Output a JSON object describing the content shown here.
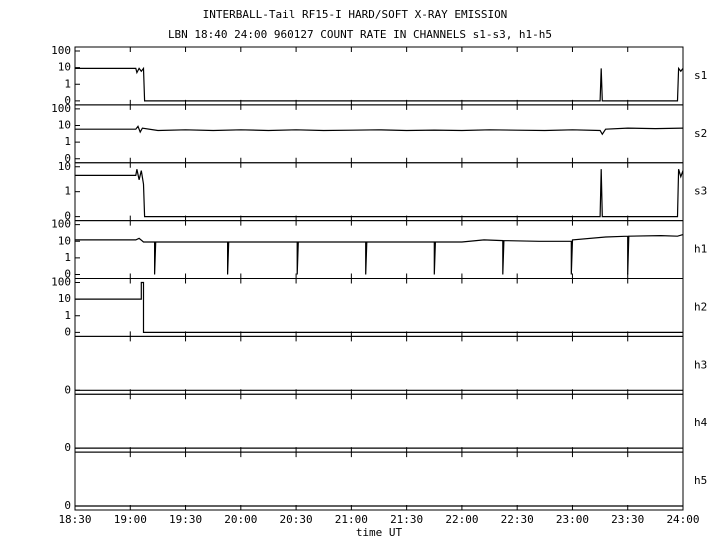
{
  "figure": {
    "title": "INTERBALL-Tail RF15-I HARD/SOFT X-RAY EMISSION",
    "subtitle": "LBN 18:40 24:00 960127  COUNT RATE IN CHANNELS s1-s3, h1-h5",
    "xlabel": "time UT",
    "xlim": [
      18.5,
      24
    ],
    "xticks": [
      {
        "value": 18.5,
        "label": "18:30"
      },
      {
        "value": 19,
        "label": "19:00"
      },
      {
        "value": 19.5,
        "label": "19:30"
      },
      {
        "value": 20,
        "label": "20:00"
      },
      {
        "value": 20.5,
        "label": "20:30"
      },
      {
        "value": 21,
        "label": "21:00"
      },
      {
        "value": 21.5,
        "label": "21:30"
      },
      {
        "value": 22,
        "label": "22:00"
      },
      {
        "value": 22.5,
        "label": "22:30"
      },
      {
        "value": 23,
        "label": "23:00"
      },
      {
        "value": 23.5,
        "label": "23:30"
      },
      {
        "value": 24,
        "label": "24:00"
      }
    ]
  },
  "chart_data": [
    {
      "type": "line",
      "yscale": "log-with-zero",
      "ylim": [
        0,
        100
      ],
      "yticks": [
        0,
        1,
        10,
        100
      ],
      "series": [
        {
          "name": "s1",
          "color": "#000000",
          "x": [
            18.5,
            19.05,
            19.06,
            19.08,
            19.1,
            19.12,
            19.13,
            23.25,
            23.26,
            23.27,
            23.28,
            23.95,
            23.96,
            23.98,
            24.0
          ],
          "values": [
            9,
            9,
            5,
            9,
            6,
            9,
            0,
            0,
            9,
            0,
            0,
            0,
            9,
            6,
            9
          ]
        }
      ]
    },
    {
      "type": "line",
      "yscale": "log-with-zero",
      "ylim": [
        0,
        100
      ],
      "yticks": [
        0,
        1,
        10,
        100
      ],
      "series": [
        {
          "name": "s2",
          "color": "#000000",
          "x": [
            18.5,
            19.05,
            19.07,
            19.09,
            19.11,
            19.25,
            19.5,
            19.75,
            20,
            20.25,
            20.5,
            20.75,
            21,
            21.25,
            21.5,
            21.75,
            22,
            22.25,
            22.5,
            22.75,
            23,
            23.25,
            23.27,
            23.3,
            23.5,
            23.75,
            24
          ],
          "values": [
            6,
            6,
            9,
            4,
            7,
            5,
            5.5,
            5,
            5.5,
            5,
            5.5,
            5,
            5.2,
            5.5,
            5,
            5.3,
            5,
            5.5,
            5.2,
            5,
            5.5,
            5,
            3,
            6,
            7,
            6.5,
            7
          ]
        }
      ]
    },
    {
      "type": "line",
      "yscale": "log-with-zero",
      "ylim": [
        0,
        10
      ],
      "yticks": [
        0,
        1,
        10
      ],
      "series": [
        {
          "name": "s3",
          "color": "#000000",
          "x": [
            18.5,
            19.05,
            19.06,
            19.08,
            19.1,
            19.12,
            19.13,
            23.25,
            23.26,
            23.27,
            23.28,
            23.95,
            23.96,
            23.98,
            24.0
          ],
          "values": [
            4.5,
            4.5,
            8,
            3,
            7,
            2,
            0,
            0,
            8,
            0,
            0,
            0,
            8,
            4,
            7
          ]
        }
      ]
    },
    {
      "type": "line",
      "yscale": "log-with-zero",
      "ylim": [
        0,
        100
      ],
      "yticks": [
        0,
        1,
        10,
        100
      ],
      "series": [
        {
          "name": "h1",
          "color": "#000000",
          "x": [
            18.5,
            19.05,
            19.08,
            19.12,
            19.22,
            19.22,
            19.23,
            19.3,
            19.88,
            19.88,
            19.89,
            20.2,
            20.51,
            20.51,
            20.52,
            20.8,
            21.13,
            21.13,
            21.14,
            21.4,
            21.75,
            21.75,
            21.76,
            22,
            22.2,
            22.37,
            22.37,
            22.38,
            22.7,
            22.99,
            22.99,
            23.0,
            23.3,
            23.5,
            23.5,
            23.51,
            23.8,
            23.95,
            24
          ],
          "values": [
            12,
            12,
            15,
            9,
            9,
            0,
            9,
            9,
            9,
            0,
            9,
            9,
            9,
            0,
            9,
            9,
            9,
            0,
            9,
            9,
            9,
            0,
            9,
            9,
            12,
            11,
            0,
            11,
            10,
            10,
            0,
            12,
            18,
            20,
            0,
            20,
            22,
            20,
            25
          ]
        }
      ]
    },
    {
      "type": "line",
      "yscale": "log-with-zero",
      "ylim": [
        0,
        100
      ],
      "yticks": [
        0,
        1,
        10,
        100
      ],
      "series": [
        {
          "name": "h2",
          "color": "#000000",
          "x": [
            18.5,
            19.1,
            19.1,
            19.12,
            19.12,
            24
          ],
          "values": [
            10,
            10,
            100,
            100,
            0,
            0
          ]
        }
      ]
    },
    {
      "type": "line",
      "yscale": "log-with-zero",
      "ylim": [
        0,
        100
      ],
      "yticks": [
        0
      ],
      "series": [
        {
          "name": "h3",
          "color": "#000000",
          "x": [
            18.5,
            24
          ],
          "values": [
            0,
            0
          ]
        }
      ]
    },
    {
      "type": "line",
      "yscale": "log-with-zero",
      "ylim": [
        0,
        100
      ],
      "yticks": [
        0
      ],
      "series": [
        {
          "name": "h4",
          "color": "#000000",
          "x": [
            18.5,
            24
          ],
          "values": [
            0,
            0
          ]
        }
      ]
    },
    {
      "type": "line",
      "yscale": "log-with-zero",
      "ylim": [
        0,
        100
      ],
      "yticks": [
        0
      ],
      "series": [
        {
          "name": "h5",
          "color": "#000000",
          "x": [
            18.5,
            24
          ],
          "values": [
            0,
            0
          ]
        }
      ]
    }
  ]
}
